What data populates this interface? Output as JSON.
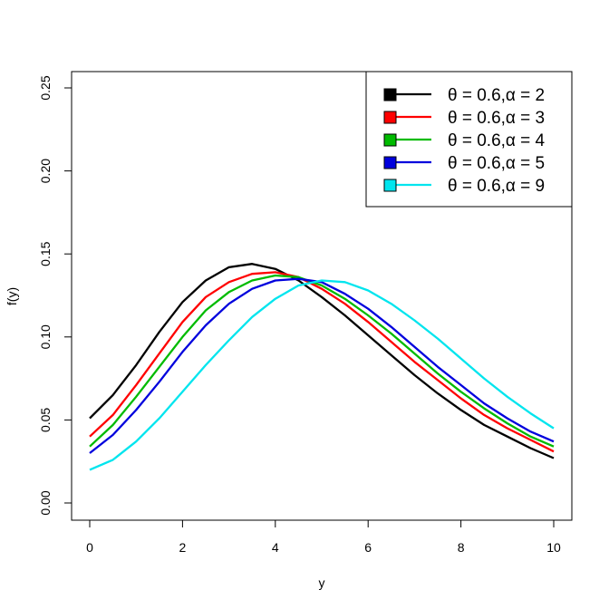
{
  "chart_data": {
    "type": "line",
    "title": "",
    "xlabel": "y",
    "ylabel": "f(y)",
    "xlim": [
      0,
      10
    ],
    "ylim": [
      0,
      0.25
    ],
    "x_ticks": [
      "0",
      "2",
      "4",
      "6",
      "8",
      "10"
    ],
    "y_ticks": [
      "0.00",
      "0.05",
      "0.10",
      "0.15",
      "0.20",
      "0.25"
    ],
    "grid": false,
    "legend_position": "top-right",
    "x": [
      0,
      0.5,
      1,
      1.5,
      2,
      2.5,
      3,
      3.5,
      4,
      4.5,
      5,
      5.5,
      6,
      6.5,
      7,
      7.5,
      8,
      8.5,
      9,
      9.5,
      10
    ],
    "series": [
      {
        "name": "θ = 0.6,α = 2",
        "color": "#000000",
        "values": [
          0.051,
          0.065,
          0.083,
          0.103,
          0.121,
          0.134,
          0.142,
          0.144,
          0.141,
          0.134,
          0.124,
          0.113,
          0.101,
          0.089,
          0.077,
          0.066,
          0.056,
          0.047,
          0.04,
          0.033,
          0.027
        ]
      },
      {
        "name": "θ = 0.6,α = 3",
        "color": "#ff0000",
        "values": [
          0.04,
          0.053,
          0.071,
          0.09,
          0.109,
          0.124,
          0.133,
          0.138,
          0.139,
          0.136,
          0.129,
          0.12,
          0.109,
          0.097,
          0.085,
          0.074,
          0.063,
          0.053,
          0.045,
          0.038,
          0.031
        ]
      },
      {
        "name": "θ = 0.6,α = 4",
        "color": "#00bb00",
        "values": [
          0.034,
          0.047,
          0.064,
          0.082,
          0.1,
          0.116,
          0.127,
          0.134,
          0.137,
          0.136,
          0.131,
          0.123,
          0.113,
          0.102,
          0.09,
          0.078,
          0.067,
          0.057,
          0.048,
          0.04,
          0.034
        ]
      },
      {
        "name": "θ = 0.6,α = 5",
        "color": "#0000dd",
        "values": [
          0.03,
          0.041,
          0.056,
          0.073,
          0.091,
          0.107,
          0.12,
          0.129,
          0.134,
          0.135,
          0.133,
          0.126,
          0.117,
          0.106,
          0.094,
          0.082,
          0.071,
          0.06,
          0.051,
          0.043,
          0.037
        ]
      },
      {
        "name": "θ = 0.6,α = 9",
        "color": "#00e5ee",
        "values": [
          0.02,
          0.026,
          0.037,
          0.051,
          0.067,
          0.083,
          0.098,
          0.112,
          0.123,
          0.131,
          0.134,
          0.133,
          0.128,
          0.12,
          0.11,
          0.099,
          0.087,
          0.075,
          0.064,
          0.054,
          0.045
        ]
      }
    ]
  }
}
